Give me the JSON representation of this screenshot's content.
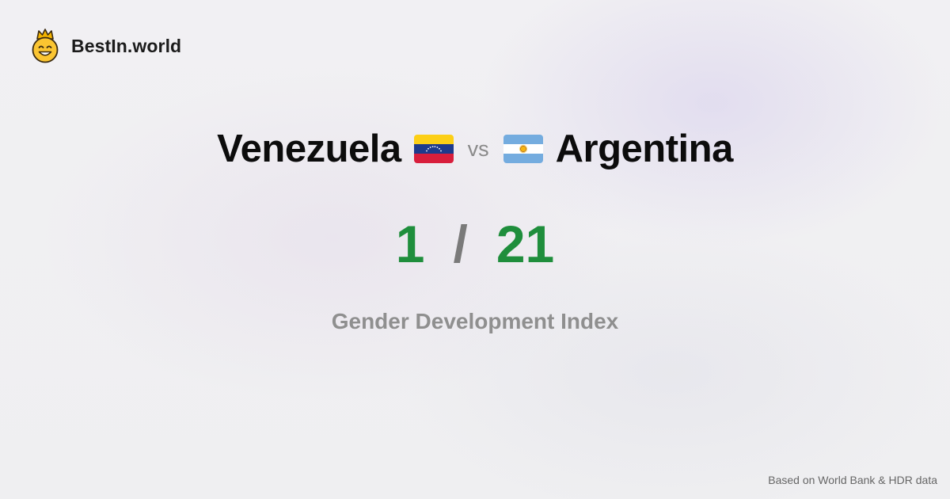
{
  "brand": {
    "name": "BestIn.world",
    "logo_icon": "crowned-smiley-face-icon"
  },
  "comparison": {
    "country_a": {
      "name": "Venezuela",
      "flag_icon": "venezuela-flag-icon",
      "value": "1"
    },
    "vs_label": "vs",
    "country_b": {
      "name": "Argentina",
      "flag_icon": "argentina-flag-icon",
      "value": "21"
    },
    "separator": "/",
    "metric": "Gender Development Index"
  },
  "footer": {
    "source": "Based on World Bank & HDR data"
  },
  "colors": {
    "value_green": "#1f8e3c",
    "muted_gray": "#8f8f8f",
    "venezuela_yellow": "#fccf16",
    "venezuela_blue": "#1d3a8c",
    "venezuela_red": "#d81e3c",
    "argentina_blue": "#74acdf",
    "argentina_sun": "#f6b40e"
  }
}
